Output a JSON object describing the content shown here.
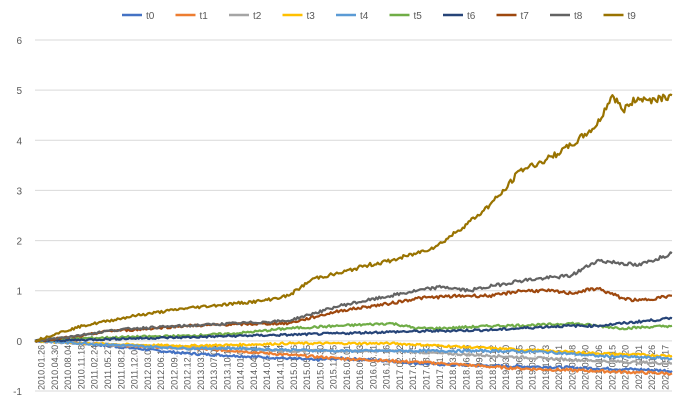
{
  "chart_data": {
    "type": "line",
    "title": "",
    "xlabel": "",
    "ylabel": "",
    "ylim": [
      -1,
      6
    ],
    "yticks": [
      -1,
      0,
      1,
      2,
      3,
      4,
      5,
      6
    ],
    "grid": true,
    "legend_position": "top",
    "xlim": [
      2010.07,
      2022.46
    ],
    "x_tick_labels": [
      "2010.01.26",
      "2010.04.30",
      "2010.08.04",
      "2010.11.18",
      "2011.02.24",
      "2011.05.27",
      "2011.08.23",
      "2011.12.01",
      "2012.03.09",
      "2012.06.14",
      "2012.09.18",
      "2012.12.19",
      "2013.03.27",
      "2013.07.04",
      "2013.10.15",
      "2014.01.09",
      "2014.04.01",
      "2014.07.04",
      "2014.10.14",
      "2015.01.16",
      "2015.05.05",
      "2015.07.30",
      "2015.11.05",
      "2016.02.01",
      "2016.05.13",
      "2016.08.11",
      "2016.11.16",
      "2017.02.22",
      "2017.05.25",
      "2017.08.23",
      "2017.11.24",
      "2018.03.06",
      "2018.06.08",
      "2018.09.04",
      "2018.12.12",
      "2019.03.20",
      "2019.06.25",
      "2019.09.20",
      "2019.12.23",
      "2020.04.01",
      "2020.07.08",
      "2020.09.30",
      "2021.01.06",
      "2021.04.15",
      "2021.07.20",
      "2021.11.01",
      "2022.01.26",
      "2022.05.17"
    ],
    "series": [
      {
        "name": "t0",
        "color": "#4472C4",
        "x": [
          2010.07,
          2011,
          2012,
          2013,
          2014,
          2015,
          2015.5,
          2016,
          2017,
          2017.5,
          2018,
          2019,
          2020,
          2021,
          2021.8,
          2022.46
        ],
        "y": [
          0,
          -0.05,
          -0.15,
          -0.25,
          -0.3,
          -0.35,
          -0.38,
          -0.35,
          -0.4,
          -0.45,
          -0.47,
          -0.5,
          -0.52,
          -0.55,
          -0.57,
          -0.6
        ]
      },
      {
        "name": "t1",
        "color": "#ED7D31",
        "x": [
          2010.07,
          2011,
          2012,
          2013,
          2014,
          2015,
          2016,
          2017,
          2018,
          2019,
          2019.5,
          2020,
          2021,
          2021.8,
          2022.46
        ],
        "y": [
          0,
          -0.05,
          -0.1,
          -0.15,
          -0.2,
          -0.28,
          -0.35,
          -0.4,
          -0.45,
          -0.52,
          -0.55,
          -0.57,
          -0.6,
          -0.63,
          -0.65
        ]
      },
      {
        "name": "t2",
        "color": "#A5A5A5",
        "x": [
          2010.07,
          2011,
          2012,
          2013,
          2014,
          2015,
          2016,
          2017,
          2018,
          2019,
          2020,
          2021,
          2022.46
        ],
        "y": [
          0,
          -0.05,
          -0.1,
          -0.12,
          -0.15,
          -0.2,
          -0.2,
          -0.2,
          -0.25,
          -0.3,
          -0.35,
          -0.4,
          -0.45
        ]
      },
      {
        "name": "t3",
        "color": "#FFC000",
        "x": [
          2010.07,
          2011,
          2012,
          2013,
          2014,
          2015,
          2016,
          2017,
          2018,
          2019,
          2020,
          2021,
          2022.46
        ],
        "y": [
          0,
          -0.05,
          -0.08,
          -0.1,
          -0.08,
          -0.05,
          -0.05,
          -0.05,
          -0.1,
          -0.15,
          -0.2,
          -0.25,
          -0.3
        ]
      },
      {
        "name": "t4",
        "color": "#5B9BD5",
        "x": [
          2010.07,
          2011,
          2012,
          2013,
          2014,
          2015,
          2016,
          2017,
          2018,
          2019,
          2020,
          2021,
          2022.46
        ],
        "y": [
          0,
          -0.05,
          -0.1,
          -0.15,
          -0.15,
          -0.18,
          -0.2,
          -0.2,
          -0.2,
          -0.2,
          -0.22,
          -0.3,
          -0.35
        ]
      },
      {
        "name": "t5",
        "color": "#70AD47",
        "x": [
          2010.07,
          2011,
          2012,
          2013,
          2014,
          2014.5,
          2015,
          2016,
          2017,
          2017.5,
          2018,
          2019,
          2020,
          2020.5,
          2021,
          2021.5,
          2022.46
        ],
        "y": [
          0,
          0.05,
          0.08,
          0.1,
          0.15,
          0.2,
          0.25,
          0.3,
          0.35,
          0.25,
          0.25,
          0.3,
          0.32,
          0.35,
          0.3,
          0.25,
          0.3
        ]
      },
      {
        "name": "t6",
        "color": "#264478",
        "x": [
          2010.07,
          2011,
          2012,
          2013,
          2014,
          2015,
          2016,
          2017,
          2018,
          2019,
          2019.5,
          2020,
          2020.5,
          2021,
          2021.5,
          2022.46
        ],
        "y": [
          0,
          0.02,
          0.05,
          0.07,
          0.1,
          0.12,
          0.15,
          0.18,
          0.2,
          0.22,
          0.25,
          0.28,
          0.3,
          0.3,
          0.35,
          0.45
        ]
      },
      {
        "name": "t7",
        "color": "#9E480E",
        "x": [
          2010.07,
          2011,
          2011.5,
          2012,
          2013,
          2014,
          2015,
          2016,
          2017,
          2017.5,
          2018,
          2018.5,
          2019,
          2019.5,
          2020,
          2020.5,
          2021,
          2021.5,
          2021.8,
          2022.46
        ],
        "y": [
          0,
          0.1,
          0.2,
          0.22,
          0.3,
          0.33,
          0.35,
          0.6,
          0.75,
          0.85,
          0.88,
          0.9,
          0.9,
          1.0,
          1.0,
          0.95,
          1.05,
          0.85,
          0.8,
          0.9
        ]
      },
      {
        "name": "t8",
        "color": "#636363",
        "x": [
          2010.07,
          2011,
          2011.5,
          2012,
          2013,
          2014,
          2015,
          2016,
          2017,
          2017.5,
          2018,
          2018.5,
          2019,
          2019.5,
          2020,
          2020.5,
          2021,
          2021.5,
          2021.8,
          2022.46
        ],
        "y": [
          0,
          0.12,
          0.2,
          0.25,
          0.3,
          0.35,
          0.4,
          0.7,
          0.9,
          1.0,
          1.08,
          1.0,
          1.1,
          1.2,
          1.25,
          1.3,
          1.6,
          1.55,
          1.5,
          1.75
        ]
      },
      {
        "name": "t9",
        "color": "#997300",
        "x": [
          2010.07,
          2010.5,
          2011,
          2011.5,
          2012,
          2013,
          2014,
          2014.5,
          2015,
          2015.5,
          2016,
          2016.5,
          2017,
          2017.5,
          2017.9,
          2018.3,
          2018.8,
          2019.2,
          2019.5,
          2020,
          2020.5,
          2021,
          2021.3,
          2021.5,
          2021.8,
          2022,
          2022.46
        ],
        "y": [
          0,
          0.15,
          0.3,
          0.4,
          0.5,
          0.65,
          0.75,
          0.8,
          0.9,
          1.25,
          1.35,
          1.5,
          1.6,
          1.75,
          1.9,
          2.2,
          2.6,
          3.0,
          3.4,
          3.6,
          3.9,
          4.3,
          4.9,
          4.6,
          4.85,
          4.8,
          4.9
        ]
      }
    ]
  }
}
